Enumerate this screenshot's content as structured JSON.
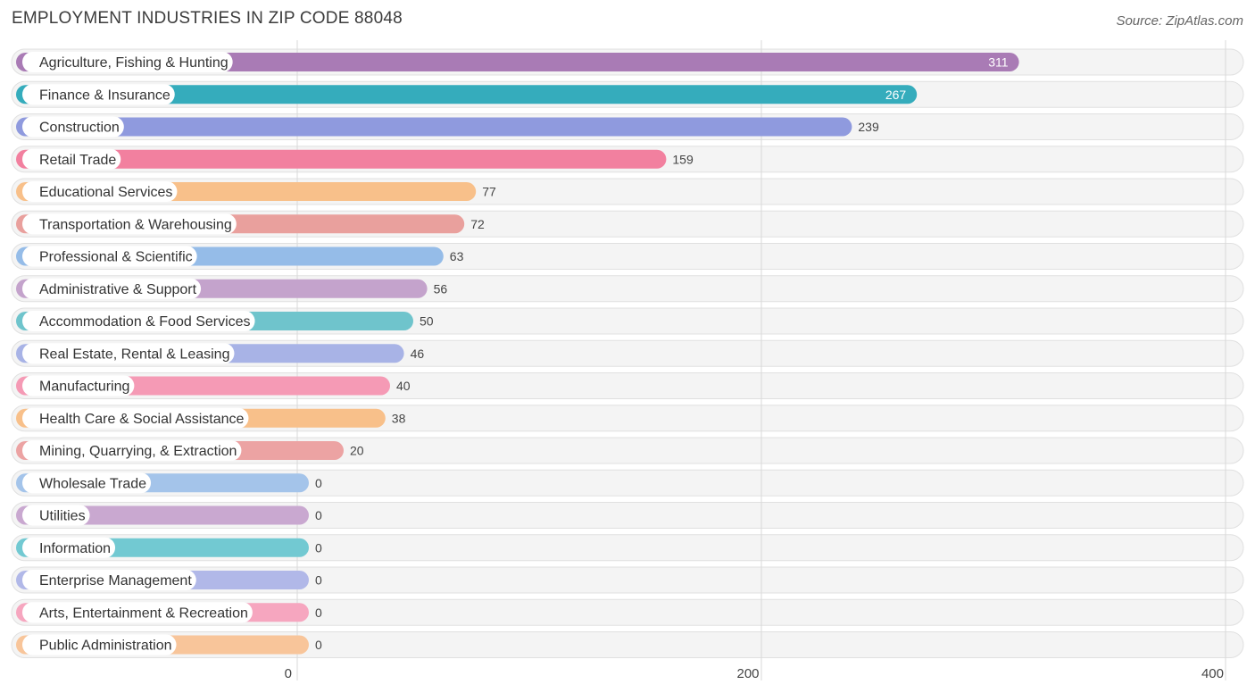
{
  "chart_data": {
    "type": "bar",
    "orientation": "horizontal",
    "title": "EMPLOYMENT INDUSTRIES IN ZIP CODE 88048",
    "source": "Source: ZipAtlas.com",
    "xlim": [
      0,
      400
    ],
    "ticks": [
      0,
      200,
      400
    ],
    "categories": [
      "Agriculture, Fishing & Hunting",
      "Finance & Insurance",
      "Construction",
      "Retail Trade",
      "Educational Services",
      "Transportation & Warehousing",
      "Professional & Scientific",
      "Administrative & Support",
      "Accommodation & Food Services",
      "Real Estate, Rental & Leasing",
      "Manufacturing",
      "Health Care & Social Assistance",
      "Mining, Quarrying, & Extraction",
      "Wholesale Trade",
      "Utilities",
      "Information",
      "Enterprise Management",
      "Arts, Entertainment & Recreation",
      "Public Administration"
    ],
    "values": [
      311,
      267,
      239,
      159,
      77,
      72,
      63,
      56,
      50,
      46,
      40,
      38,
      20,
      0,
      0,
      0,
      0,
      0,
      0
    ],
    "colors": [
      "#a97bb5",
      "#35acbc",
      "#8f9ade",
      "#f2809f",
      "#f8c08a",
      "#e9a09d",
      "#95bce8",
      "#c4a3cc",
      "#6fc4cc",
      "#a8b3e6",
      "#f59ab5",
      "#f8c08a",
      "#eca3a3",
      "#a4c4ea",
      "#c9a8d0",
      "#72c9d2",
      "#b1b8e8",
      "#f6a6bf",
      "#f8c59a"
    ]
  }
}
